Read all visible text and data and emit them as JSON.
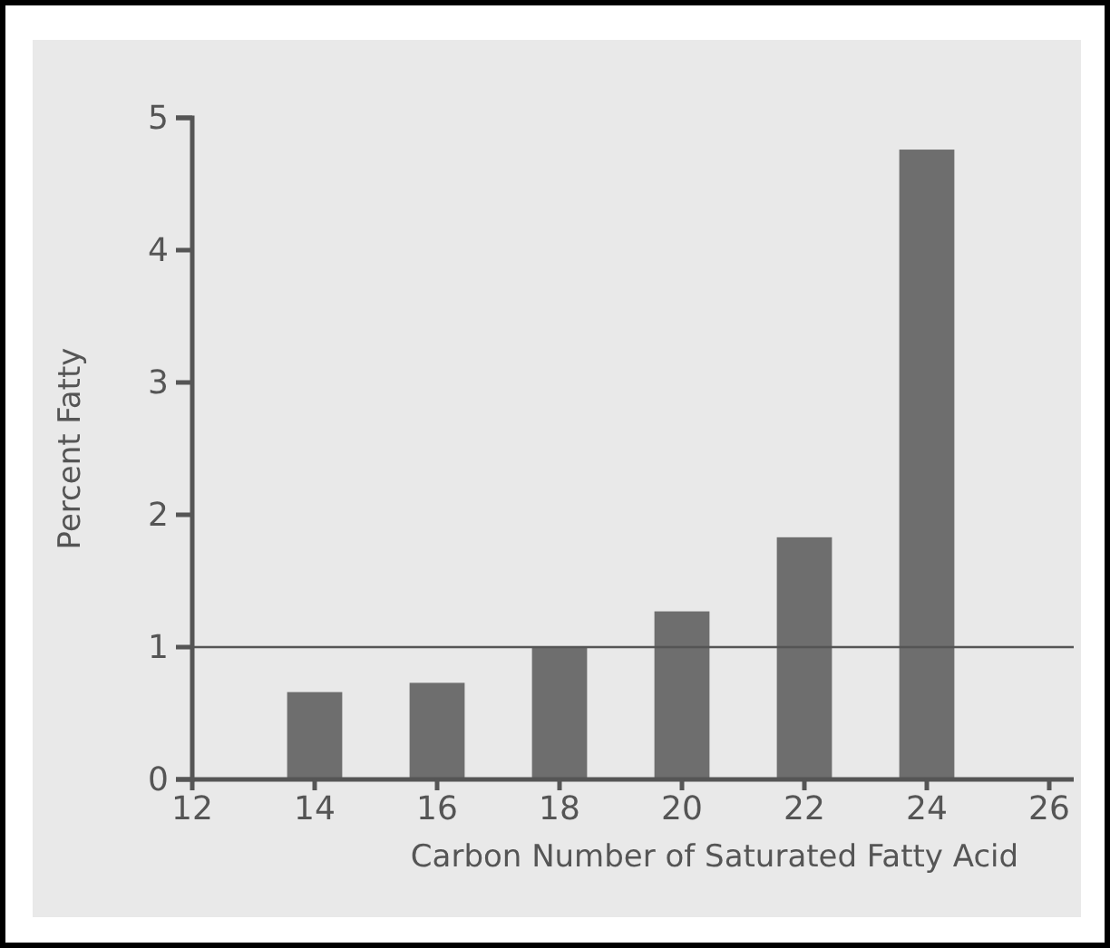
{
  "chart_data": {
    "type": "bar",
    "x": [
      14,
      16,
      18,
      20,
      22,
      24
    ],
    "values": [
      0.66,
      0.73,
      1.0,
      1.27,
      1.83,
      4.76
    ],
    "color": "#6e6e6e",
    "xlabel": "Carbon Number of Saturated Fatty Acid",
    "ylabel": "Percent Fatty",
    "xlim": [
      12,
      26.4
    ],
    "xticks": [
      12,
      14,
      16,
      18,
      20,
      22,
      24,
      26
    ],
    "ylim": [
      0,
      5
    ],
    "yticks": [
      0,
      1,
      2,
      3,
      4,
      5
    ],
    "ref_lines": [
      {
        "axis": "y",
        "value": 1,
        "color": "#555555"
      }
    ],
    "grid": false
  }
}
